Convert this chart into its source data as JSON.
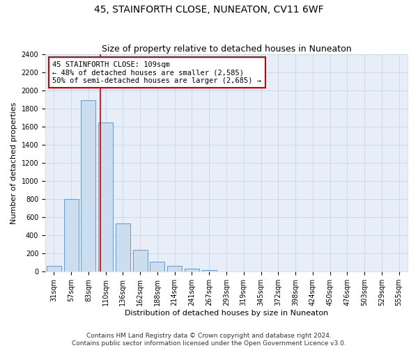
{
  "title": "45, STAINFORTH CLOSE, NUNEATON, CV11 6WF",
  "subtitle": "Size of property relative to detached houses in Nuneaton",
  "xlabel": "Distribution of detached houses by size in Nuneaton",
  "ylabel": "Number of detached properties",
  "categories": [
    "31sqm",
    "57sqm",
    "83sqm",
    "110sqm",
    "136sqm",
    "162sqm",
    "188sqm",
    "214sqm",
    "241sqm",
    "267sqm",
    "293sqm",
    "319sqm",
    "345sqm",
    "372sqm",
    "398sqm",
    "424sqm",
    "450sqm",
    "476sqm",
    "503sqm",
    "529sqm",
    "555sqm"
  ],
  "values": [
    60,
    800,
    1890,
    1650,
    530,
    240,
    110,
    60,
    35,
    20,
    0,
    0,
    0,
    0,
    0,
    0,
    0,
    0,
    0,
    0,
    0
  ],
  "bar_color": "#ccddf0",
  "bar_edge_color": "#6699cc",
  "vline_x": 2.67,
  "vline_color": "#cc0000",
  "annotation_text": "45 STAINFORTH CLOSE: 109sqm\n← 48% of detached houses are smaller (2,585)\n50% of semi-detached houses are larger (2,685) →",
  "annotation_box_color": "#ffffff",
  "annotation_box_edge": "#cc0000",
  "ylim": [
    0,
    2400
  ],
  "yticks": [
    0,
    200,
    400,
    600,
    800,
    1000,
    1200,
    1400,
    1600,
    1800,
    2000,
    2200,
    2400
  ],
  "grid_color": "#c8d4e8",
  "bg_color": "#e8eef8",
  "footer": "Contains HM Land Registry data © Crown copyright and database right 2024.\nContains public sector information licensed under the Open Government Licence v3.0.",
  "title_fontsize": 10,
  "subtitle_fontsize": 9,
  "axis_label_fontsize": 8,
  "tick_fontsize": 7,
  "annotation_fontsize": 7.5,
  "footer_fontsize": 6.5
}
